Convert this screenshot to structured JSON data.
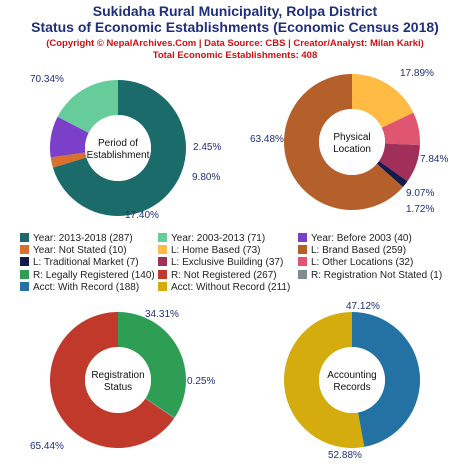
{
  "header": {
    "title_line1": "Sukidaha Rural Municipality, Rolpa District",
    "title_line2": "Status of Economic Establishments (Economic Census 2018)",
    "credit": "(Copyright © NepalArchives.Com | Data Source: CBS | Creator/Analyst: Milan Karki)",
    "total": "Total Economic Establishments: 408"
  },
  "chart_data": [
    {
      "type": "pie",
      "center_label": [
        "Period of",
        "Establishment"
      ],
      "slices": [
        {
          "label": "Year: 2013-2018",
          "value": 287,
          "pct": "70.34%",
          "color": "#1b6b6b"
        },
        {
          "label": "Year: Not Stated",
          "value": 10,
          "pct": "2.45%",
          "color": "#d9712c"
        },
        {
          "label": "Year: Before 2003",
          "value": 40,
          "pct": "9.80%",
          "color": "#7b3fc9"
        },
        {
          "label": "Year: 2003-2013",
          "value": 71,
          "pct": "17.40%",
          "color": "#66cc99"
        }
      ]
    },
    {
      "type": "pie",
      "center_label": [
        "Physical",
        "Location"
      ],
      "slices": [
        {
          "label": "L: Home Based",
          "value": 73,
          "pct": "17.89%",
          "color": "#ffbb44"
        },
        {
          "label": "L: Other Locations",
          "value": 32,
          "pct": "7.84%",
          "color": "#e05570"
        },
        {
          "label": "L: Exclusive Building",
          "value": 37,
          "pct": "9.07%",
          "color": "#a0305a"
        },
        {
          "label": "L: Traditional Market",
          "value": 7,
          "pct": "1.72%",
          "color": "#141a4a"
        },
        {
          "label": "L: Brand Based",
          "value": 259,
          "pct": "63.48%",
          "color": "#b5602a"
        }
      ]
    },
    {
      "type": "pie",
      "center_label": [
        "Registration",
        "Status"
      ],
      "slices": [
        {
          "label": "R: Legally Registered",
          "value": 140,
          "pct": "34.31%",
          "color": "#2e9e55"
        },
        {
          "label": "R: Registration Not Stated",
          "value": 1,
          "pct": "0.25%",
          "color": "#7f8c8d"
        },
        {
          "label": "R: Not Registered",
          "value": 267,
          "pct": "65.44%",
          "color": "#c0392b"
        }
      ]
    },
    {
      "type": "pie",
      "center_label": [
        "Accounting",
        "Records"
      ],
      "slices": [
        {
          "label": "Acct: With Record",
          "value": 188,
          "pct": "47.12%",
          "color": "#2471a3"
        },
        {
          "label": "Acct: Without Record",
          "value": 211,
          "pct": "52.88%",
          "color": "#d4ac0d"
        }
      ]
    }
  ],
  "legend": [
    {
      "text": "Year: 2013-2018 (287)",
      "color": "#1b6b6b"
    },
    {
      "text": "Year: 2003-2013 (71)",
      "color": "#66cc99"
    },
    {
      "text": "Year: Before 2003 (40)",
      "color": "#7b3fc9"
    },
    {
      "text": "Year: Not Stated (10)",
      "color": "#d9712c"
    },
    {
      "text": "L: Home Based (73)",
      "color": "#ffbb44"
    },
    {
      "text": "L: Brand Based (259)",
      "color": "#b5602a"
    },
    {
      "text": "L: Traditional Market (7)",
      "color": "#141a4a"
    },
    {
      "text": "L: Exclusive Building (37)",
      "color": "#a0305a"
    },
    {
      "text": "L: Other Locations (32)",
      "color": "#e05570"
    },
    {
      "text": "R: Legally Registered (140)",
      "color": "#2e9e55"
    },
    {
      "text": "R: Not Registered (267)",
      "color": "#c0392b"
    },
    {
      "text": "R: Registration Not Stated (1)",
      "color": "#7f8c8d"
    },
    {
      "text": "Acct: With Record (188)",
      "color": "#2471a3"
    },
    {
      "text": "Acct: Without Record (211)",
      "color": "#d4ac0d"
    }
  ]
}
